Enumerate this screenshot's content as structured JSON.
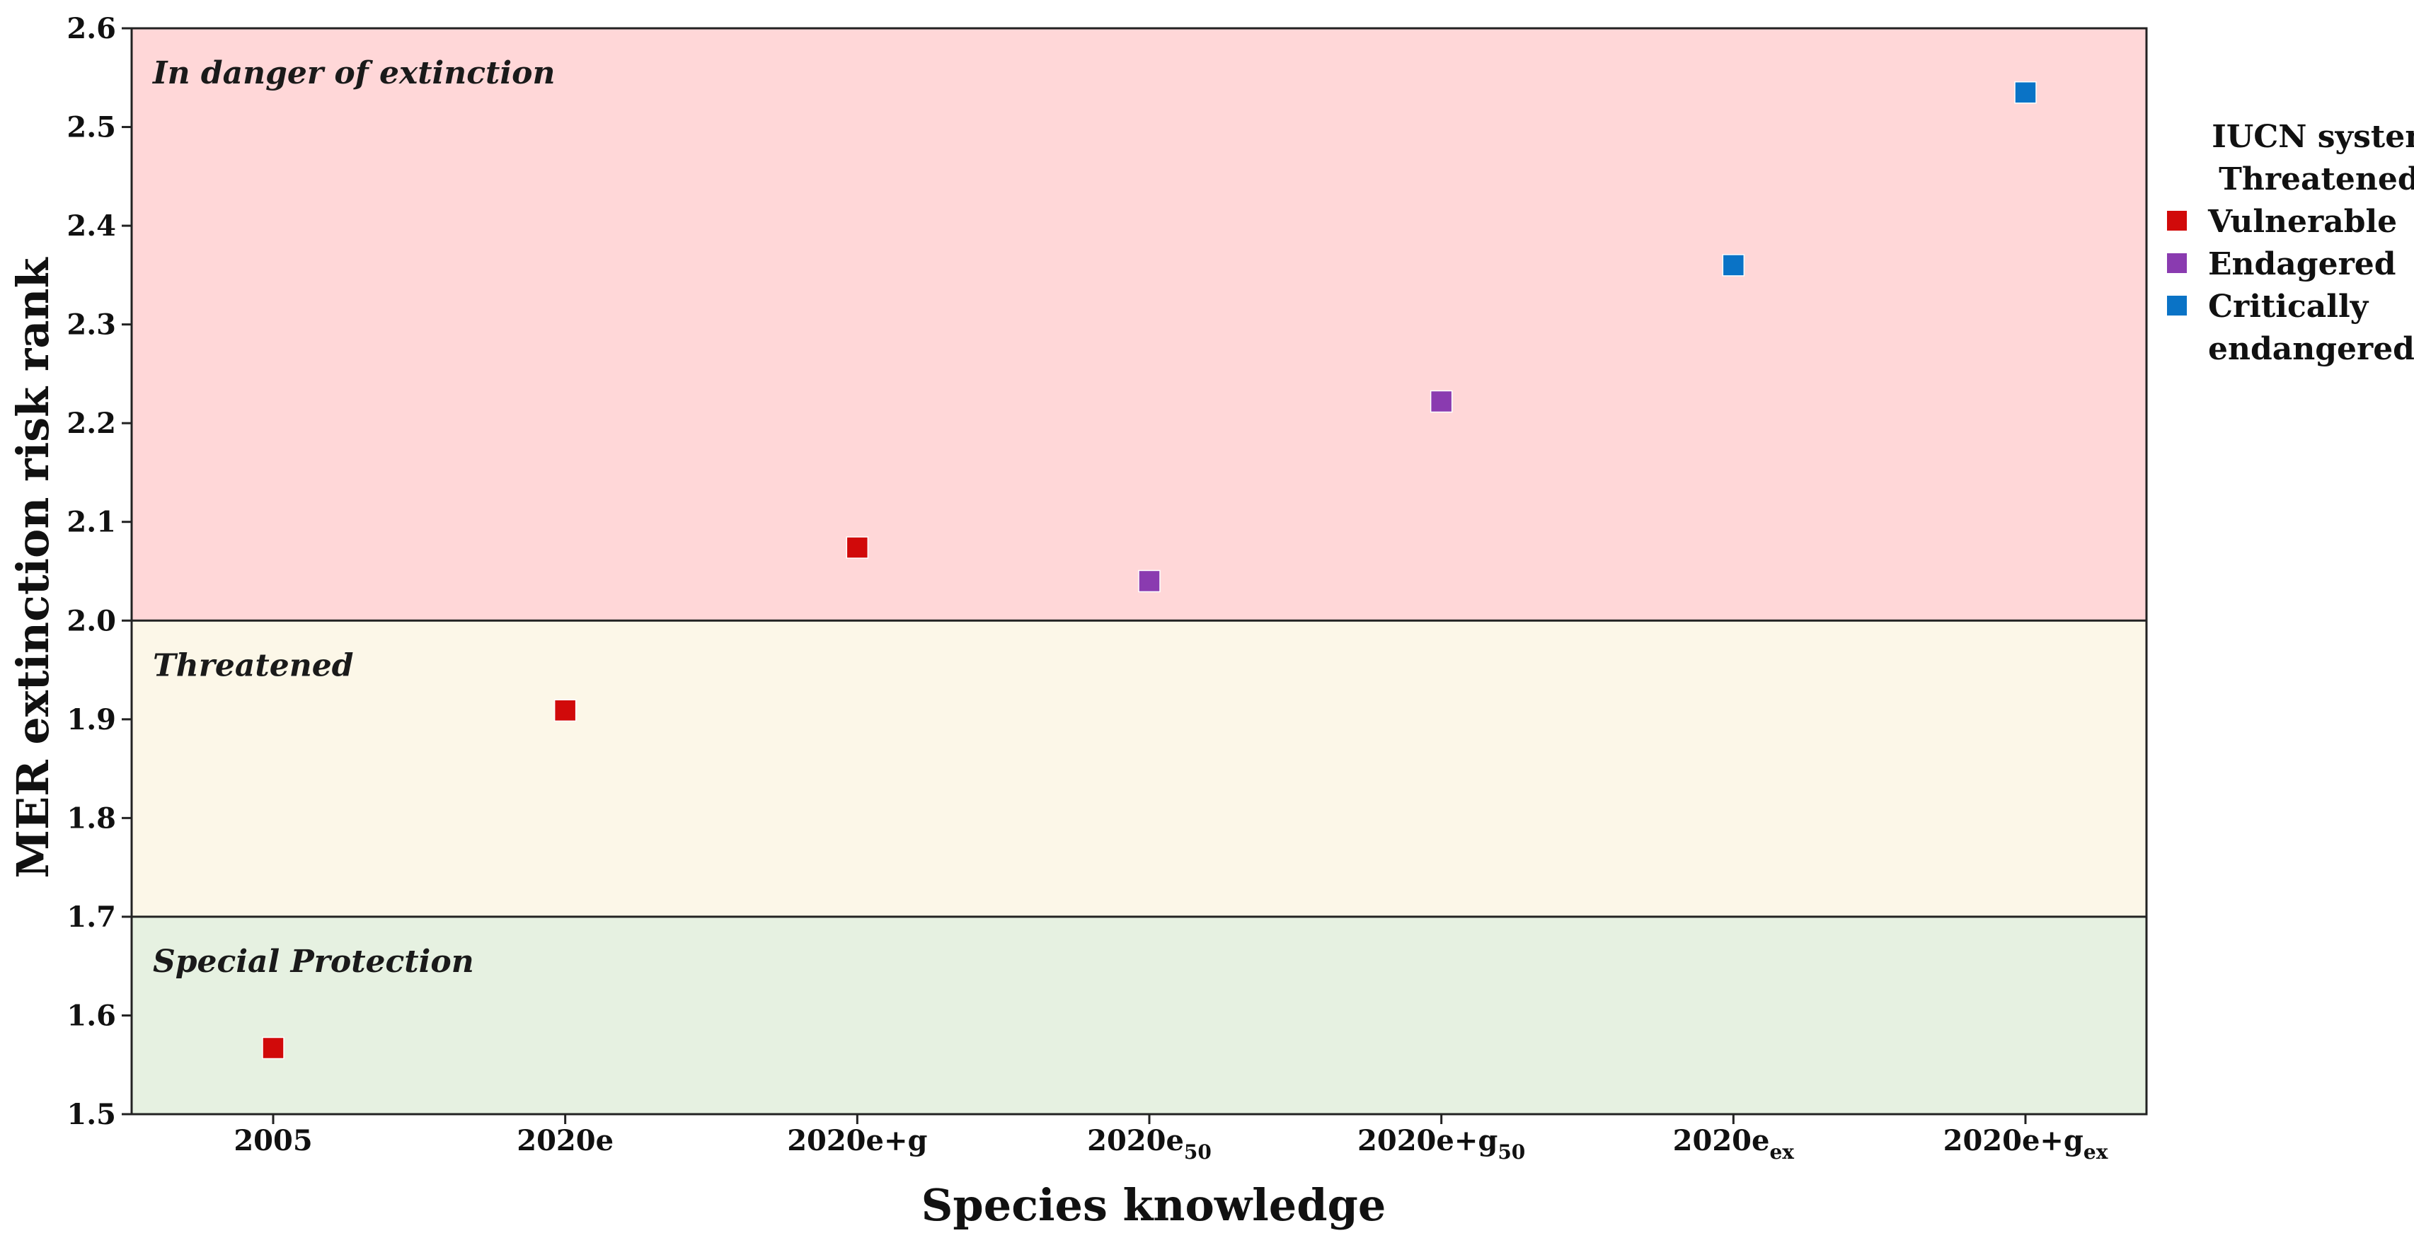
{
  "chart_data": {
    "type": "scatter",
    "title": "",
    "xlabel": "Species knowledge",
    "ylabel": "MER extinction risk rank",
    "ylim": [
      1.5,
      2.6
    ],
    "yticks": [
      "1.5",
      "1.6",
      "1.7",
      "1.8",
      "1.9",
      "2.0",
      "2.1",
      "2.2",
      "2.3",
      "2.4",
      "2.5",
      "2.6"
    ],
    "categories": [
      {
        "base": "2005",
        "sub": ""
      },
      {
        "base": "2020e",
        "sub": ""
      },
      {
        "base": "2020e+g",
        "sub": ""
      },
      {
        "base": "2020e",
        "sub": "50"
      },
      {
        "base": "2020e+g",
        "sub": "50"
      },
      {
        "base": "2020e",
        "sub": "ex"
      },
      {
        "base": "2020e+g",
        "sub": "ex"
      }
    ],
    "points": [
      {
        "x": 0,
        "y": 1.567,
        "status": "Vulnerable"
      },
      {
        "x": 1,
        "y": 1.909,
        "status": "Vulnerable"
      },
      {
        "x": 2,
        "y": 2.074,
        "status": "Vulnerable"
      },
      {
        "x": 3,
        "y": 2.04,
        "status": "Endagered"
      },
      {
        "x": 4,
        "y": 2.222,
        "status": "Endagered"
      },
      {
        "x": 5,
        "y": 2.36,
        "status": "Critically endangered"
      },
      {
        "x": 6,
        "y": 2.535,
        "status": "Critically endangered"
      }
    ],
    "zones": [
      {
        "label": "In danger of extinction",
        "from": 2.0,
        "to": 2.6,
        "color": "#ffd7d8"
      },
      {
        "label": "Threatened",
        "from": 1.7,
        "to": 2.0,
        "color": "#fcf7e8"
      },
      {
        "label": "Special Protection",
        "from": 1.5,
        "to": 1.7,
        "color": "#e6f1e1"
      }
    ],
    "legend": {
      "title_lines": [
        "IUCN system",
        "Threatened:"
      ],
      "entries": [
        {
          "label_lines": [
            "Vulnerable"
          ],
          "color": "#d10a0a",
          "key": "Vulnerable"
        },
        {
          "label_lines": [
            "Endagered"
          ],
          "color": "#8a3bb0",
          "key": "Endagered"
        },
        {
          "label_lines": [
            "Critically",
            "endangered"
          ],
          "color": "#0a73c6",
          "key": "Critically endangered"
        }
      ]
    }
  }
}
